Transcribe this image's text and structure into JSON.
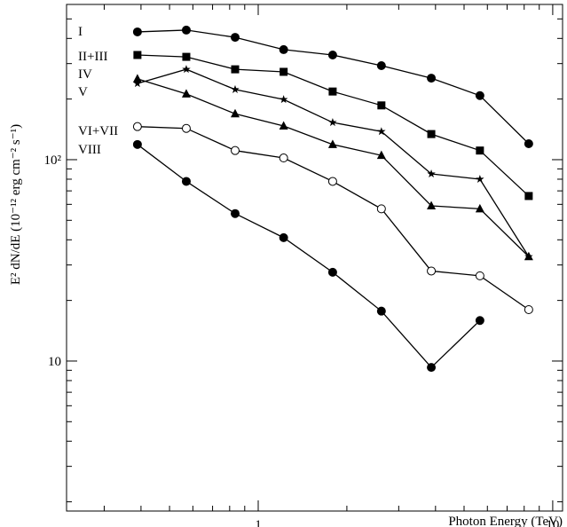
{
  "chart_data": {
    "type": "scatter",
    "xlabel": "Photon Energy (TeV)",
    "ylabel": "E² dN/dE (10⁻¹² erg cm⁻² s⁻¹)",
    "xscale": "log",
    "yscale": "log",
    "xlim": [
      0.2235,
      10.8
    ],
    "ylim": [
      1.8,
      590
    ],
    "xticks": [
      1,
      10
    ],
    "yticks": [
      10,
      {
        "value": 100,
        "label": "10²"
      }
    ],
    "xminorticks": [
      0.3,
      0.4,
      0.5,
      0.6,
      0.7,
      0.8,
      0.9,
      2,
      3,
      4,
      5,
      6,
      7,
      8,
      9
    ],
    "yminorticks": [
      2,
      3,
      4,
      5,
      6,
      7,
      8,
      9,
      20,
      30,
      40,
      50,
      60,
      70,
      80,
      90,
      200,
      300,
      400,
      500
    ],
    "x": [
      0.389,
      0.57,
      0.835,
      1.22,
      1.79,
      2.62,
      3.87,
      5.66,
      8.29
    ],
    "series": [
      {
        "name": "I",
        "marker": "circle",
        "color": "#000000",
        "values": [
          431,
          440,
          405,
          352,
          331,
          293,
          254,
          208,
          120
        ]
      },
      {
        "name": "II+III",
        "marker": "square",
        "color": "#000000",
        "values": [
          331,
          324,
          281,
          273,
          218,
          186,
          134,
          111,
          66
        ]
      },
      {
        "name": "IV",
        "marker": "star",
        "color": "#000000",
        "values": [
          239,
          281,
          223,
          199,
          153,
          138,
          85,
          80,
          33
        ]
      },
      {
        "name": "V",
        "marker": "triangle",
        "color": "#000000",
        "values": [
          252,
          212,
          169,
          147,
          119,
          105,
          59,
          57,
          33
        ]
      },
      {
        "name": "VI+VII",
        "marker": "open-circle",
        "color": "#000000",
        "values": [
          146,
          143,
          111,
          102,
          78,
          57,
          28,
          26.5,
          18
        ]
      },
      {
        "name": "VIII",
        "marker": "circle",
        "color": "#000000",
        "values": [
          119,
          78,
          54,
          41,
          27.6,
          17.7,
          9.3,
          15.9,
          null
        ]
      }
    ]
  }
}
